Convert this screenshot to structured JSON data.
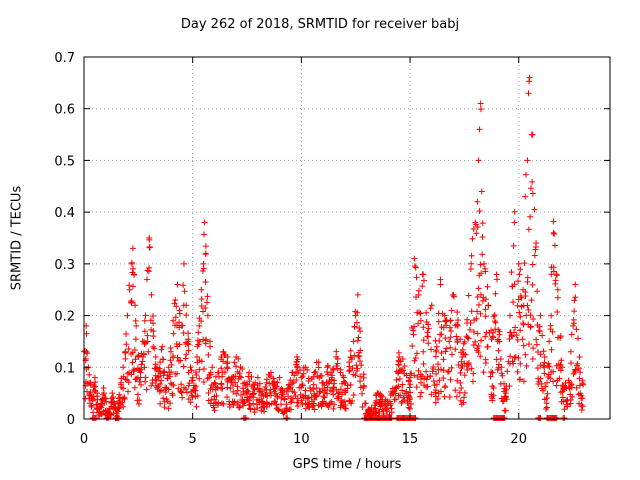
{
  "chart_data": {
    "type": "scatter",
    "title": "Day 262 of 2018, SRMTID for receiver babj",
    "xlabel": "GPS time / hours",
    "ylabel": "SRMTID / TECUs",
    "xlim": [
      0,
      24.2
    ],
    "ylim": [
      0,
      0.7
    ],
    "xticks": [
      0,
      5,
      10,
      15,
      20
    ],
    "yticks": [
      0,
      0.1,
      0.2,
      0.3,
      0.4,
      0.5,
      0.6,
      0.7
    ],
    "ytick_labels": [
      "0",
      "0.1",
      "0.2",
      "0.3",
      "0.4",
      "0.5",
      "0.6",
      "0.7"
    ],
    "grid": true,
    "marker": "+",
    "color": "#ff0000",
    "series": [
      {
        "name": "SRMTID",
        "x": [
          0.0,
          0.1,
          0.2,
          0.3,
          0.4,
          0.5,
          0.6,
          0.7,
          0.8,
          0.9,
          1.0,
          1.1,
          1.2,
          1.3,
          1.4,
          1.5,
          1.6,
          1.7,
          1.8,
          1.9,
          2.0,
          2.1,
          2.2,
          2.25,
          2.3,
          2.35,
          2.4,
          2.5,
          2.6,
          2.7,
          2.8,
          2.9,
          3.0,
          3.1,
          3.2,
          3.3,
          3.4,
          3.5,
          3.6,
          3.7,
          3.8,
          3.9,
          4.0,
          4.1,
          4.2,
          4.3,
          4.4,
          4.5,
          4.6,
          4.7,
          4.8,
          4.9,
          5.0,
          5.1,
          5.2,
          5.3,
          5.4,
          5.5,
          5.55,
          5.6,
          5.7,
          5.8,
          5.9,
          6.0,
          6.2,
          6.4,
          6.6,
          6.8,
          7.0,
          7.2,
          7.4,
          7.6,
          7.8,
          8.0,
          8.2,
          8.4,
          8.6,
          8.8,
          9.0,
          9.2,
          9.4,
          9.6,
          9.8,
          10.0,
          10.2,
          10.4,
          10.6,
          10.8,
          11.0,
          11.2,
          11.4,
          11.6,
          11.8,
          12.0,
          12.2,
          12.4,
          12.5,
          12.6,
          12.7,
          13.0,
          13.5,
          14.0,
          14.5,
          15.0,
          15.2,
          15.4,
          15.5,
          15.6,
          15.8,
          16.0,
          16.2,
          16.4,
          16.6,
          16.8,
          17.0,
          17.2,
          17.4,
          17.6,
          17.8,
          18.0,
          18.1,
          18.15,
          18.2,
          18.25,
          18.3,
          18.4,
          18.6,
          18.8,
          19.0,
          19.2,
          19.4,
          19.6,
          19.8,
          20.0,
          20.2,
          20.3,
          20.4,
          20.45,
          20.5,
          20.6,
          20.8,
          21.0,
          21.2,
          21.3,
          21.4,
          21.5,
          21.6,
          21.8,
          22.0,
          22.2,
          22.4,
          22.5,
          22.6,
          22.8,
          23.0
        ],
        "values": [
          0.13,
          0.18,
          0.1,
          0.07,
          0.04,
          0.08,
          0.05,
          0.02,
          0.03,
          0.06,
          0.04,
          0.01,
          0.02,
          0.05,
          0.03,
          0.01,
          0.04,
          0.07,
          0.1,
          0.13,
          0.2,
          0.25,
          0.3,
          0.33,
          0.28,
          0.22,
          0.18,
          0.12,
          0.09,
          0.15,
          0.19,
          0.27,
          0.35,
          0.24,
          0.17,
          0.12,
          0.08,
          0.11,
          0.14,
          0.09,
          0.06,
          0.1,
          0.13,
          0.19,
          0.23,
          0.26,
          0.21,
          0.18,
          0.3,
          0.22,
          0.15,
          0.1,
          0.08,
          0.06,
          0.12,
          0.18,
          0.25,
          0.3,
          0.38,
          0.32,
          0.2,
          0.14,
          0.1,
          0.07,
          0.09,
          0.13,
          0.11,
          0.08,
          0.12,
          0.1,
          0.07,
          0.09,
          0.06,
          0.08,
          0.05,
          0.07,
          0.09,
          0.06,
          0.08,
          0.04,
          0.06,
          0.09,
          0.12,
          0.08,
          0.1,
          0.06,
          0.09,
          0.11,
          0.07,
          0.1,
          0.08,
          0.12,
          0.09,
          0.07,
          0.11,
          0.15,
          0.2,
          0.24,
          0.17,
          0.01,
          0.05,
          0.03,
          0.12,
          0.08,
          0.31,
          0.24,
          0.19,
          0.28,
          0.16,
          0.22,
          0.13,
          0.26,
          0.2,
          0.15,
          0.24,
          0.18,
          0.12,
          0.16,
          0.29,
          0.38,
          0.42,
          0.5,
          0.56,
          0.61,
          0.44,
          0.3,
          0.22,
          0.16,
          0.27,
          0.1,
          0.05,
          0.2,
          0.38,
          0.3,
          0.25,
          0.43,
          0.5,
          0.63,
          0.66,
          0.55,
          0.34,
          0.2,
          0.12,
          0.07,
          0.15,
          0.28,
          0.36,
          0.25,
          0.1,
          0.06,
          0.13,
          0.18,
          0.26,
          0.12,
          0.05
        ]
      }
    ],
    "zero_band_ranges": [
      [
        0.4,
        0.55
      ],
      [
        1.05,
        1.15
      ],
      [
        1.45,
        1.65
      ],
      [
        7.35,
        7.45
      ],
      [
        9.3,
        9.4
      ],
      [
        12.9,
        14.2
      ],
      [
        14.4,
        15.3
      ],
      [
        18.85,
        19.4
      ],
      [
        20.9,
        21.0
      ],
      [
        21.3,
        21.8
      ],
      [
        22.05,
        22.15
      ]
    ]
  }
}
